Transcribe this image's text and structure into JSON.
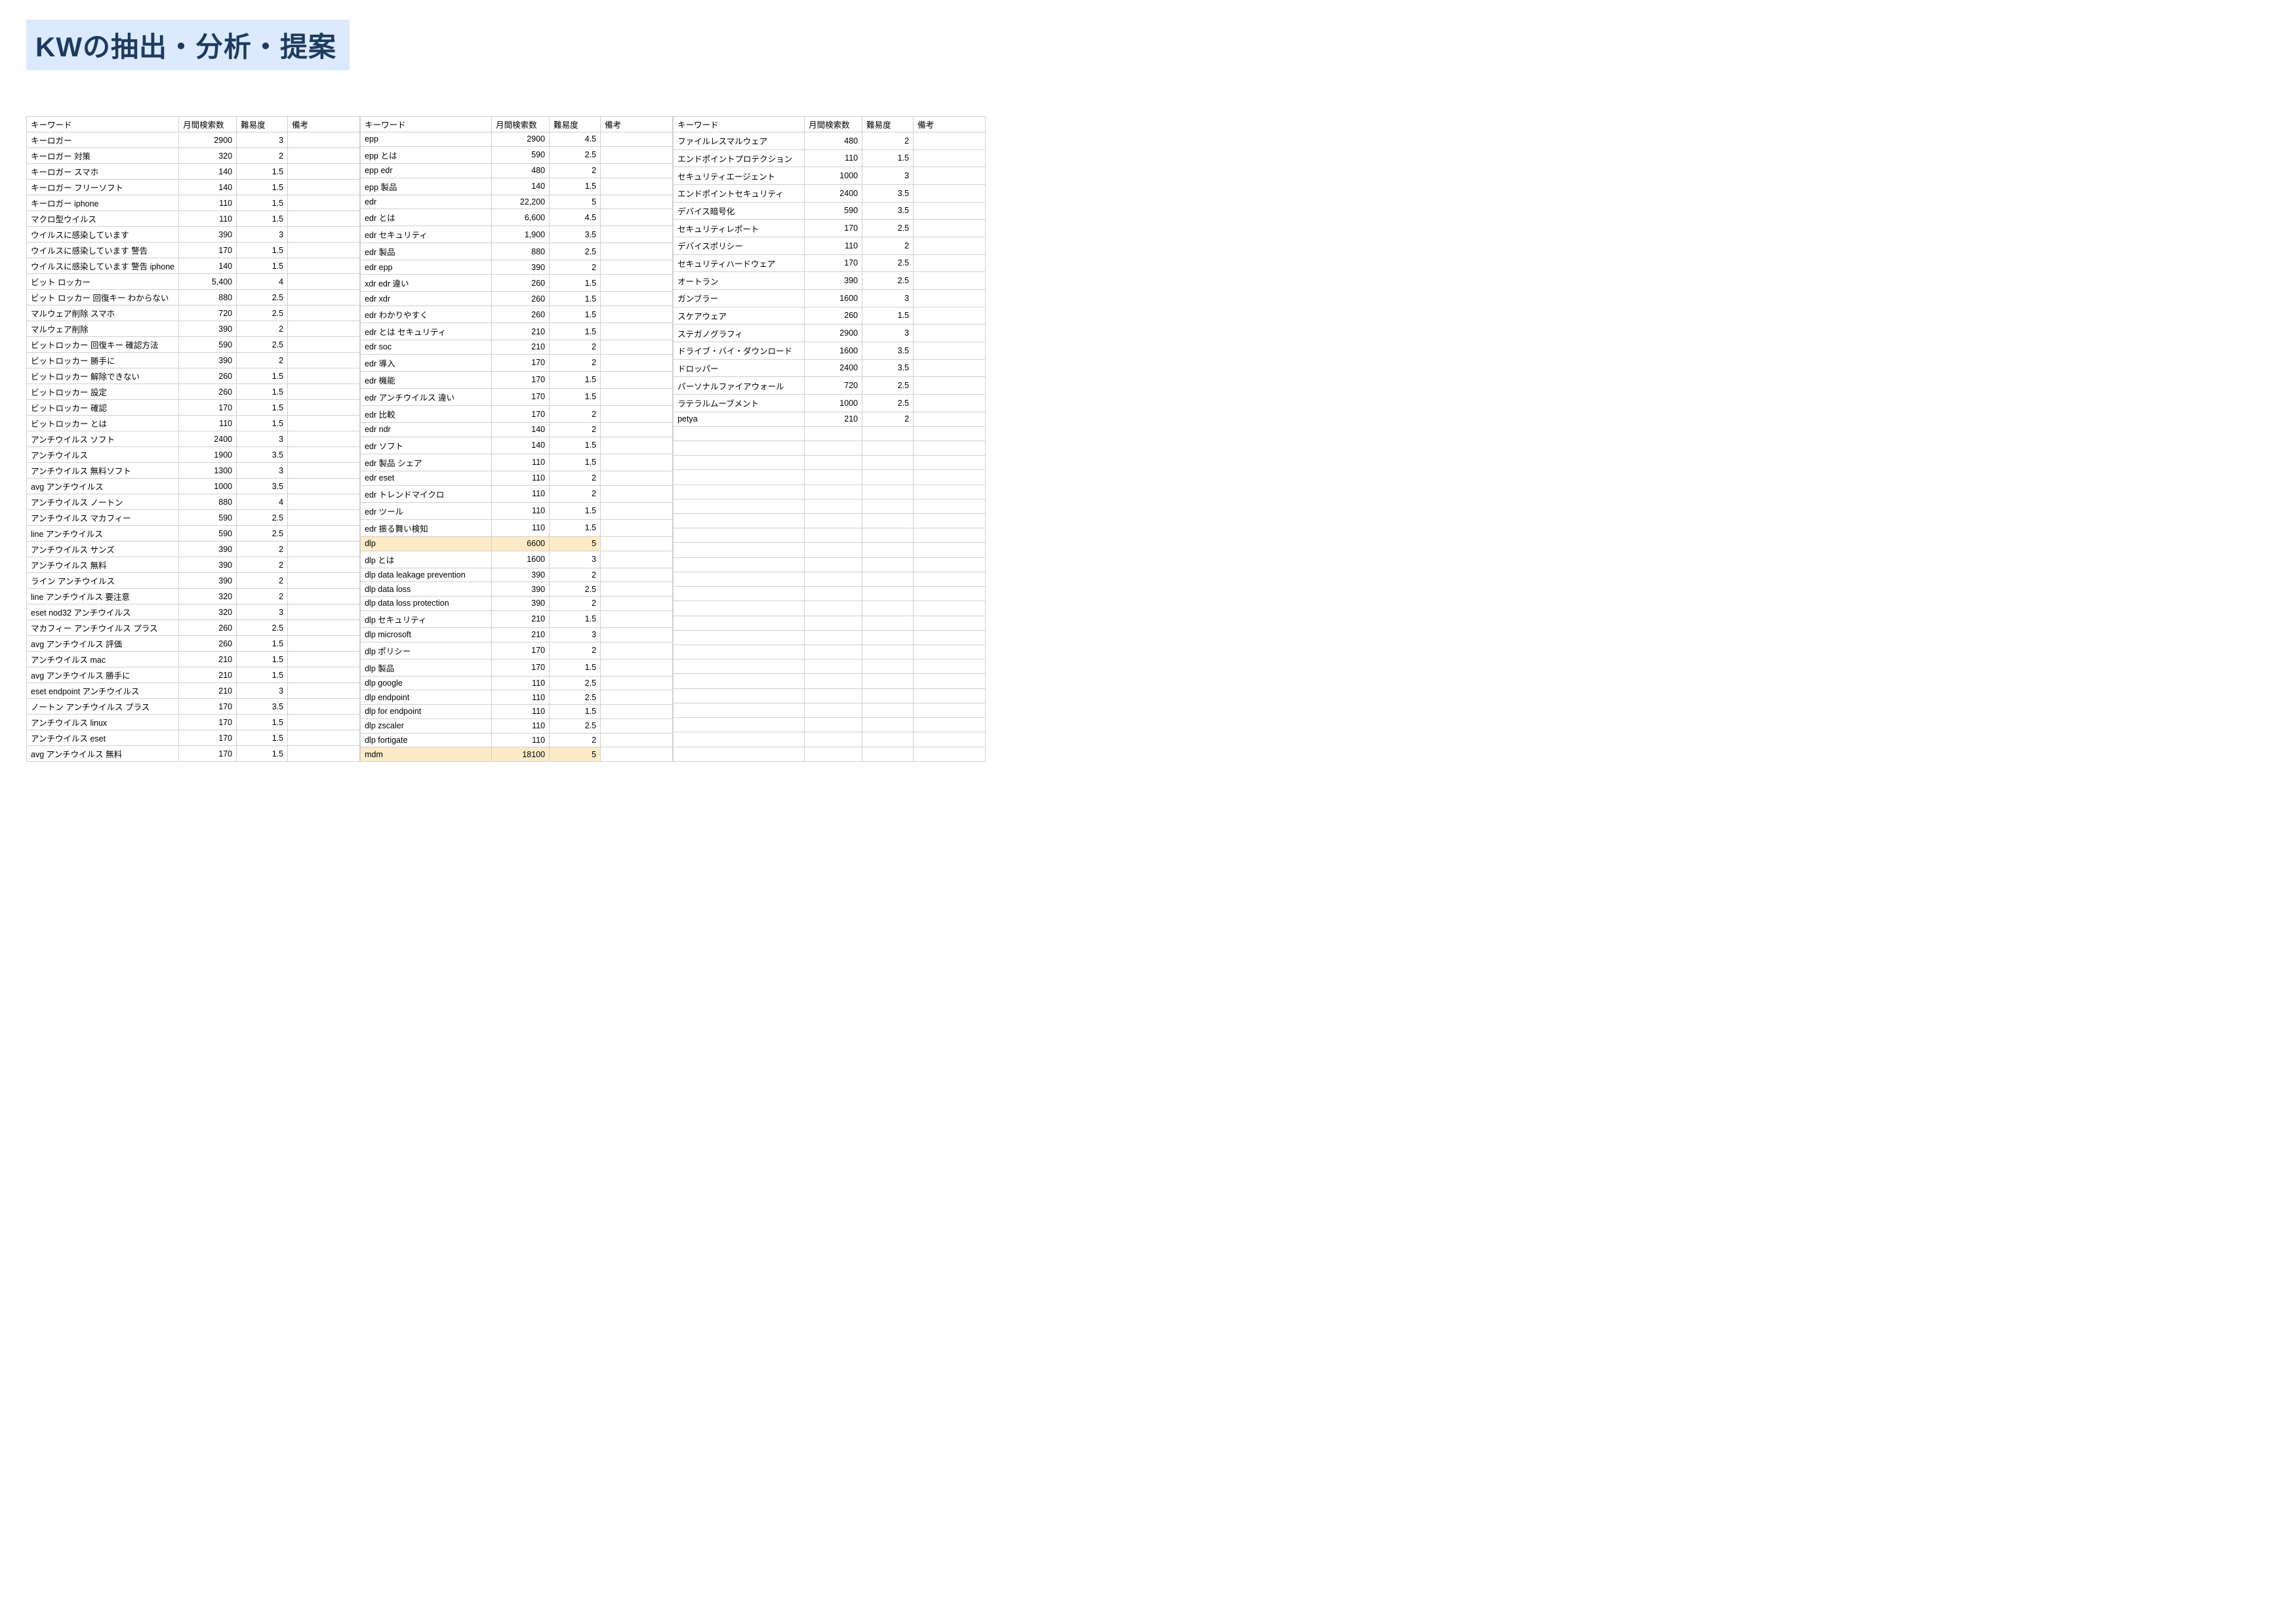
{
  "title": "KWの抽出・分析・提案",
  "headers": {
    "keyword": "キーワード",
    "volume": "月間検索数",
    "difficulty": "難易度",
    "note": "備考"
  },
  "highlight_color": "#fdebc8",
  "title_bg": "#dbeafe",
  "title_color": "#1e3a5f",
  "tables": [
    {
      "rows": [
        {
          "kw": "キーロガー",
          "vol": "2900",
          "diff": "3"
        },
        {
          "kw": "キーロガー 対策",
          "vol": "320",
          "diff": "2"
        },
        {
          "kw": "キーロガー スマホ",
          "vol": "140",
          "diff": "1.5"
        },
        {
          "kw": "キーロガー フリーソフト",
          "vol": "140",
          "diff": "1.5"
        },
        {
          "kw": "キーロガー iphone",
          "vol": "110",
          "diff": "1.5"
        },
        {
          "kw": "マクロ型ウイルス",
          "vol": "110",
          "diff": "1.5"
        },
        {
          "kw": "ウイルスに感染しています",
          "vol": "390",
          "diff": "3"
        },
        {
          "kw": "ウイルスに感染しています 警告",
          "vol": "170",
          "diff": "1.5"
        },
        {
          "kw": "ウイルスに感染しています 警告 iphone",
          "vol": "140",
          "diff": "1.5"
        },
        {
          "kw": "ビット ロッカー",
          "vol": "5,400",
          "diff": "4"
        },
        {
          "kw": "ビット ロッカー 回復キー わからない",
          "vol": "880",
          "diff": "2.5"
        },
        {
          "kw": "マルウェア削除 スマホ",
          "vol": "720",
          "diff": "2.5"
        },
        {
          "kw": "マルウェア削除",
          "vol": "390",
          "diff": "2"
        },
        {
          "kw": "ビットロッカー 回復キー 確認方法",
          "vol": "590",
          "diff": "2.5"
        },
        {
          "kw": "ビットロッカー 勝手に",
          "vol": "390",
          "diff": "2"
        },
        {
          "kw": "ビットロッカー 解除できない",
          "vol": "260",
          "diff": "1.5"
        },
        {
          "kw": "ビットロッカー 設定",
          "vol": "260",
          "diff": "1.5"
        },
        {
          "kw": "ビットロッカー 確認",
          "vol": "170",
          "diff": "1.5"
        },
        {
          "kw": "ビットロッカー とは",
          "vol": "110",
          "diff": "1.5"
        },
        {
          "kw": "アンチウイルス ソフト",
          "vol": "2400",
          "diff": "3"
        },
        {
          "kw": "アンチウイルス",
          "vol": "1900",
          "diff": "3.5"
        },
        {
          "kw": "アンチウイルス 無料ソフト",
          "vol": "1300",
          "diff": "3"
        },
        {
          "kw": "avg アンチウイルス",
          "vol": "1000",
          "diff": "3.5"
        },
        {
          "kw": "アンチウイルス ノートン",
          "vol": "880",
          "diff": "4"
        },
        {
          "kw": "アンチウイルス マカフィー",
          "vol": "590",
          "diff": "2.5"
        },
        {
          "kw": "line アンチウイルス",
          "vol": "590",
          "diff": "2.5"
        },
        {
          "kw": "アンチウイルス サンズ",
          "vol": "390",
          "diff": "2"
        },
        {
          "kw": "アンチウイルス 無料",
          "vol": "390",
          "diff": "2"
        },
        {
          "kw": "ライン アンチウイルス",
          "vol": "390",
          "diff": "2"
        },
        {
          "kw": "line アンチウイルス 要注意",
          "vol": "320",
          "diff": "2"
        },
        {
          "kw": "eset nod32 アンチウイルス",
          "vol": "320",
          "diff": "3"
        },
        {
          "kw": "マカフィー アンチウイルス プラス",
          "vol": "260",
          "diff": "2.5"
        },
        {
          "kw": "avg アンチウイルス 評価",
          "vol": "260",
          "diff": "1.5"
        },
        {
          "kw": "アンチウイルス mac",
          "vol": "210",
          "diff": "1.5"
        },
        {
          "kw": "avg アンチウイルス 勝手に",
          "vol": "210",
          "diff": "1.5"
        },
        {
          "kw": "eset endpoint アンチウイルス",
          "vol": "210",
          "diff": "3"
        },
        {
          "kw": "ノートン アンチウイルス プラス",
          "vol": "170",
          "diff": "3.5"
        },
        {
          "kw": "アンチウイルス linux",
          "vol": "170",
          "diff": "1.5"
        },
        {
          "kw": "アンチウイルス eset",
          "vol": "170",
          "diff": "1.5"
        },
        {
          "kw": "avg アンチウイルス 無料",
          "vol": "170",
          "diff": "1.5"
        }
      ]
    },
    {
      "rows": [
        {
          "kw": "epp",
          "vol": "2900",
          "diff": "4.5"
        },
        {
          "kw": "epp とは",
          "vol": "590",
          "diff": "2.5"
        },
        {
          "kw": "epp edr",
          "vol": "480",
          "diff": "2"
        },
        {
          "kw": "epp 製品",
          "vol": "140",
          "diff": "1.5"
        },
        {
          "kw": "edr",
          "vol": "22,200",
          "diff": "5"
        },
        {
          "kw": "edr とは",
          "vol": "6,600",
          "diff": "4.5"
        },
        {
          "kw": "edr セキュリティ",
          "vol": "1,900",
          "diff": "3.5"
        },
        {
          "kw": "edr 製品",
          "vol": "880",
          "diff": "2.5"
        },
        {
          "kw": "edr epp",
          "vol": "390",
          "diff": "2"
        },
        {
          "kw": "xdr edr 違い",
          "vol": "260",
          "diff": "1.5"
        },
        {
          "kw": "edr xdr",
          "vol": "260",
          "diff": "1.5"
        },
        {
          "kw": "edr わかりやすく",
          "vol": "260",
          "diff": "1.5"
        },
        {
          "kw": "edr とは セキュリティ",
          "vol": "210",
          "diff": "1.5"
        },
        {
          "kw": "edr soc",
          "vol": "210",
          "diff": "2"
        },
        {
          "kw": "edr 導入",
          "vol": "170",
          "diff": "2"
        },
        {
          "kw": "edr 機能",
          "vol": "170",
          "diff": "1.5"
        },
        {
          "kw": "edr アンチウイルス 違い",
          "vol": "170",
          "diff": "1.5"
        },
        {
          "kw": "edr 比較",
          "vol": "170",
          "diff": "2"
        },
        {
          "kw": "edr ndr",
          "vol": "140",
          "diff": "2"
        },
        {
          "kw": "edr ソフト",
          "vol": "140",
          "diff": "1.5"
        },
        {
          "kw": "edr 製品 シェア",
          "vol": "110",
          "diff": "1.5"
        },
        {
          "kw": "edr eset",
          "vol": "110",
          "diff": "2"
        },
        {
          "kw": "edr トレンドマイクロ",
          "vol": "110",
          "diff": "2"
        },
        {
          "kw": "edr ツール",
          "vol": "110",
          "diff": "1.5"
        },
        {
          "kw": "edr 振る舞い検知",
          "vol": "110",
          "diff": "1.5"
        },
        {
          "kw": "dlp",
          "vol": "6600",
          "diff": "5",
          "hl": true
        },
        {
          "kw": "dlp とは",
          "vol": "1600",
          "diff": "3"
        },
        {
          "kw": "dlp data leakage prevention",
          "vol": "390",
          "diff": "2"
        },
        {
          "kw": "dlp data loss",
          "vol": "390",
          "diff": "2.5"
        },
        {
          "kw": "dlp data loss protection",
          "vol": "390",
          "diff": "2"
        },
        {
          "kw": "dlp セキュリティ",
          "vol": "210",
          "diff": "1.5"
        },
        {
          "kw": "dlp microsoft",
          "vol": "210",
          "diff": "3"
        },
        {
          "kw": "dlp ポリシー",
          "vol": "170",
          "diff": "2"
        },
        {
          "kw": "dlp 製品",
          "vol": "170",
          "diff": "1.5"
        },
        {
          "kw": "dlp google",
          "vol": "110",
          "diff": "2.5"
        },
        {
          "kw": "dlp endpoint",
          "vol": "110",
          "diff": "2.5"
        },
        {
          "kw": "dlp for endpoint",
          "vol": "110",
          "diff": "1.5"
        },
        {
          "kw": "dlp zscaler",
          "vol": "110",
          "diff": "2.5"
        },
        {
          "kw": "dlp fortigate",
          "vol": "110",
          "diff": "2"
        },
        {
          "kw": "mdm",
          "vol": "18100",
          "diff": "5",
          "hl": true
        }
      ]
    },
    {
      "rows": [
        {
          "kw": "ファイルレスマルウェア",
          "vol": "480",
          "diff": "2"
        },
        {
          "kw": "エンドポイントプロテクション",
          "vol": "110",
          "diff": "1.5"
        },
        {
          "kw": "セキュリティエージェント",
          "vol": "1000",
          "diff": "3"
        },
        {
          "kw": "エンドポイントセキュリティ",
          "vol": "2400",
          "diff": "3.5"
        },
        {
          "kw": "デバイス暗号化",
          "vol": "590",
          "diff": "3.5"
        },
        {
          "kw": "セキュリティレポート",
          "vol": "170",
          "diff": "2.5"
        },
        {
          "kw": "デバイスポリシー",
          "vol": "110",
          "diff": "2"
        },
        {
          "kw": "セキュリティハードウェア",
          "vol": "170",
          "diff": "2.5"
        },
        {
          "kw": "オートラン",
          "vol": "390",
          "diff": "2.5"
        },
        {
          "kw": "ガンブラー",
          "vol": "1600",
          "diff": "3"
        },
        {
          "kw": "スケアウェア",
          "vol": "260",
          "diff": "1.5"
        },
        {
          "kw": "ステガノグラフィ",
          "vol": "2900",
          "diff": "3"
        },
        {
          "kw": "ドライブ・バイ・ダウンロード",
          "vol": "1600",
          "diff": "3.5"
        },
        {
          "kw": "ドロッパー",
          "vol": "2400",
          "diff": "3.5"
        },
        {
          "kw": "パーソナルファイアウォール",
          "vol": "720",
          "diff": "2.5"
        },
        {
          "kw": "ラテラルムーブメント",
          "vol": "1000",
          "diff": "2.5"
        },
        {
          "kw": "petya",
          "vol": "210",
          "diff": "2"
        }
      ],
      "pad_to": 40
    }
  ]
}
